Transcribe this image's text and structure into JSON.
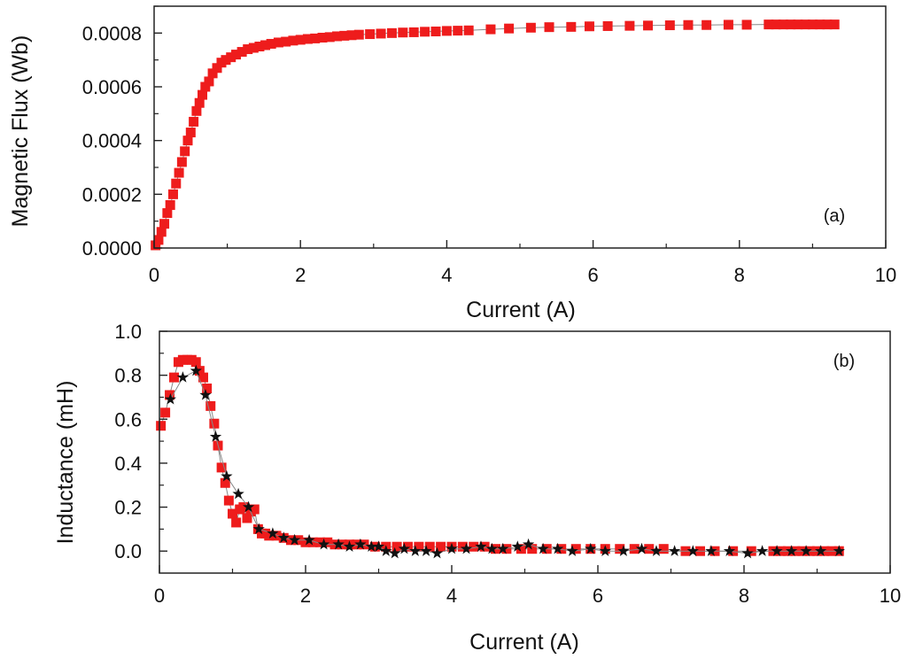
{
  "chart_data": [
    {
      "type": "scatter",
      "panel_label": "(a)",
      "xlabel": "Current (A)",
      "ylabel": "Magnetic Flux (Wb)",
      "xlim": [
        0,
        10
      ],
      "ylim": [
        0,
        0.0009
      ],
      "x_ticks": [
        "0",
        "2",
        "4",
        "6",
        "8",
        "10"
      ],
      "x_tick_values": [
        0,
        2,
        4,
        6,
        8,
        10
      ],
      "y_ticks": [
        "0.0000",
        "0.0002",
        "0.0004",
        "0.0006",
        "0.0008"
      ],
      "y_tick_values": [
        0,
        0.0002,
        0.0004,
        0.0006,
        0.0008
      ],
      "grid": false,
      "colors": {
        "marker": "#ee1c1c",
        "line": "#888888"
      },
      "series": [
        {
          "marker": "square",
          "color": "#ee1c1c",
          "x": [
            0.02,
            0.06,
            0.1,
            0.14,
            0.18,
            0.22,
            0.26,
            0.3,
            0.34,
            0.38,
            0.42,
            0.46,
            0.5,
            0.54,
            0.58,
            0.62,
            0.66,
            0.7,
            0.75,
            0.8,
            0.86,
            0.92,
            0.98,
            1.05,
            1.12,
            1.2,
            1.28,
            1.36,
            1.44,
            1.52,
            1.6,
            1.7,
            1.8,
            1.9,
            2.0,
            2.1,
            2.2,
            2.3,
            2.4,
            2.5,
            2.6,
            2.7,
            2.8,
            2.95,
            3.1,
            3.25,
            3.4,
            3.55,
            3.7,
            3.85,
            4.0,
            4.15,
            4.3,
            4.6,
            4.85,
            5.15,
            5.4,
            5.7,
            5.95,
            6.2,
            6.5,
            6.75,
            7.05,
            7.3,
            7.55,
            7.85,
            8.1,
            8.4,
            8.5,
            8.6,
            8.7,
            8.8,
            8.9,
            9.0,
            9.1,
            9.2,
            9.3
          ],
          "y": [
            1e-05,
            3e-05,
            6e-05,
            9e-05,
            0.00013,
            0.00016,
            0.0002,
            0.00024,
            0.00028,
            0.00032,
            0.00036,
            0.0004,
            0.00043,
            0.00047,
            0.00051,
            0.00054,
            0.00057,
            0.0006,
            0.00062,
            0.00065,
            0.00067,
            0.00069,
            0.0007,
            0.00071,
            0.00072,
            0.00073,
            0.00074,
            0.000745,
            0.00075,
            0.000755,
            0.00076,
            0.000765,
            0.000768,
            0.000772,
            0.000775,
            0.000778,
            0.00078,
            0.000783,
            0.000785,
            0.000788,
            0.00079,
            0.000792,
            0.000794,
            0.000796,
            0.000798,
            0.0008,
            0.000802,
            0.000803,
            0.000805,
            0.000806,
            0.000808,
            0.000809,
            0.00081,
            0.000814,
            0.000817,
            0.00082,
            0.000822,
            0.000823,
            0.000825,
            0.000826,
            0.000827,
            0.000828,
            0.000829,
            0.00083,
            0.00083,
            0.000831,
            0.000831,
            0.000832,
            0.000832,
            0.000832,
            0.000832,
            0.000832,
            0.000832,
            0.000832,
            0.000832,
            0.000832,
            0.000832
          ]
        }
      ]
    },
    {
      "type": "scatter",
      "panel_label": "(b)",
      "xlabel": "Current (A)",
      "ylabel": "Inductance (mH)",
      "xlim": [
        0,
        10
      ],
      "ylim": [
        -0.1,
        1.0
      ],
      "x_ticks": [
        "0",
        "2",
        "4",
        "6",
        "8",
        "10"
      ],
      "x_tick_values": [
        0,
        2,
        4,
        6,
        8,
        10
      ],
      "y_ticks": [
        "0.0",
        "0.2",
        "0.4",
        "0.6",
        "0.8",
        "1.0"
      ],
      "y_tick_values": [
        0,
        0.2,
        0.4,
        0.6,
        0.8,
        1.0
      ],
      "grid": false,
      "colors": {
        "square": "#ee1c1c",
        "star": "#111111",
        "line": "#888888"
      },
      "series": [
        {
          "marker": "square",
          "color": "#ee1c1c",
          "x": [
            0.02,
            0.08,
            0.14,
            0.2,
            0.26,
            0.32,
            0.38,
            0.44,
            0.5,
            0.55,
            0.6,
            0.65,
            0.7,
            0.75,
            0.8,
            0.85,
            0.9,
            0.95,
            1.0,
            1.05,
            1.1,
            1.15,
            1.2,
            1.25,
            1.3,
            1.35,
            1.4,
            1.45,
            1.5,
            1.6,
            1.7,
            1.8,
            1.9,
            2.0,
            2.1,
            2.2,
            2.3,
            2.4,
            2.5,
            2.6,
            2.7,
            2.8,
            2.95,
            3.1,
            3.25,
            3.4,
            3.55,
            3.7,
            3.85,
            4.0,
            4.15,
            4.3,
            4.45,
            4.6,
            4.75,
            4.95,
            5.1,
            5.3,
            5.5,
            5.7,
            5.9,
            6.1,
            6.3,
            6.5,
            6.7,
            6.9,
            7.2,
            7.4,
            7.6,
            7.85,
            8.1,
            8.4,
            8.5,
            8.6,
            8.7,
            8.8,
            8.9,
            9.0,
            9.1,
            9.2,
            9.3
          ],
          "y": [
            0.57,
            0.63,
            0.71,
            0.79,
            0.86,
            0.87,
            0.87,
            0.87,
            0.86,
            0.82,
            0.79,
            0.74,
            0.66,
            0.58,
            0.48,
            0.38,
            0.31,
            0.23,
            0.17,
            0.13,
            0.19,
            0.2,
            0.15,
            0.18,
            0.19,
            0.1,
            0.08,
            0.08,
            0.07,
            0.07,
            0.06,
            0.05,
            0.05,
            0.04,
            0.04,
            0.04,
            0.04,
            0.03,
            0.03,
            0.03,
            0.03,
            0.03,
            0.02,
            0.02,
            0.02,
            0.02,
            0.02,
            0.02,
            0.02,
            0.02,
            0.02,
            0.02,
            0.02,
            0.01,
            0.01,
            0.01,
            0.01,
            0.01,
            0.01,
            0.01,
            0.01,
            0.01,
            0.01,
            0.01,
            0.01,
            0.01,
            0.0,
            0.0,
            0.0,
            0.0,
            0.0,
            0.0,
            0.0,
            0.0,
            0.0,
            0.0,
            0.0,
            0.0,
            0.0,
            0.0,
            0.0
          ]
        },
        {
          "marker": "star",
          "color": "#111111",
          "x": [
            0.15,
            0.32,
            0.5,
            0.63,
            0.77,
            0.92,
            1.08,
            1.22,
            1.36,
            1.55,
            1.7,
            1.85,
            2.05,
            2.25,
            2.45,
            2.6,
            2.75,
            2.9,
            3.0,
            3.1,
            3.22,
            3.35,
            3.5,
            3.65,
            3.8,
            4.0,
            4.2,
            4.4,
            4.55,
            4.7,
            4.9,
            5.05,
            5.25,
            5.45,
            5.65,
            5.9,
            6.1,
            6.35,
            6.6,
            6.8,
            7.05,
            7.3,
            7.55,
            7.8,
            8.05,
            8.25,
            8.45,
            8.65,
            8.85,
            9.05,
            9.3
          ],
          "y": [
            0.69,
            0.79,
            0.82,
            0.71,
            0.52,
            0.34,
            0.26,
            0.2,
            0.1,
            0.08,
            0.06,
            0.05,
            0.05,
            0.03,
            0.03,
            0.02,
            0.03,
            0.02,
            0.02,
            0.0,
            -0.01,
            0.01,
            0.0,
            0.0,
            -0.01,
            0.01,
            0.01,
            0.02,
            0.01,
            0.01,
            0.02,
            0.03,
            0.01,
            0.01,
            0.0,
            0.01,
            0.0,
            0.0,
            0.01,
            0.0,
            0.0,
            0.0,
            0.0,
            0.0,
            -0.01,
            0.0,
            0.0,
            0.0,
            0.0,
            0.0,
            0.0
          ]
        }
      ]
    }
  ]
}
